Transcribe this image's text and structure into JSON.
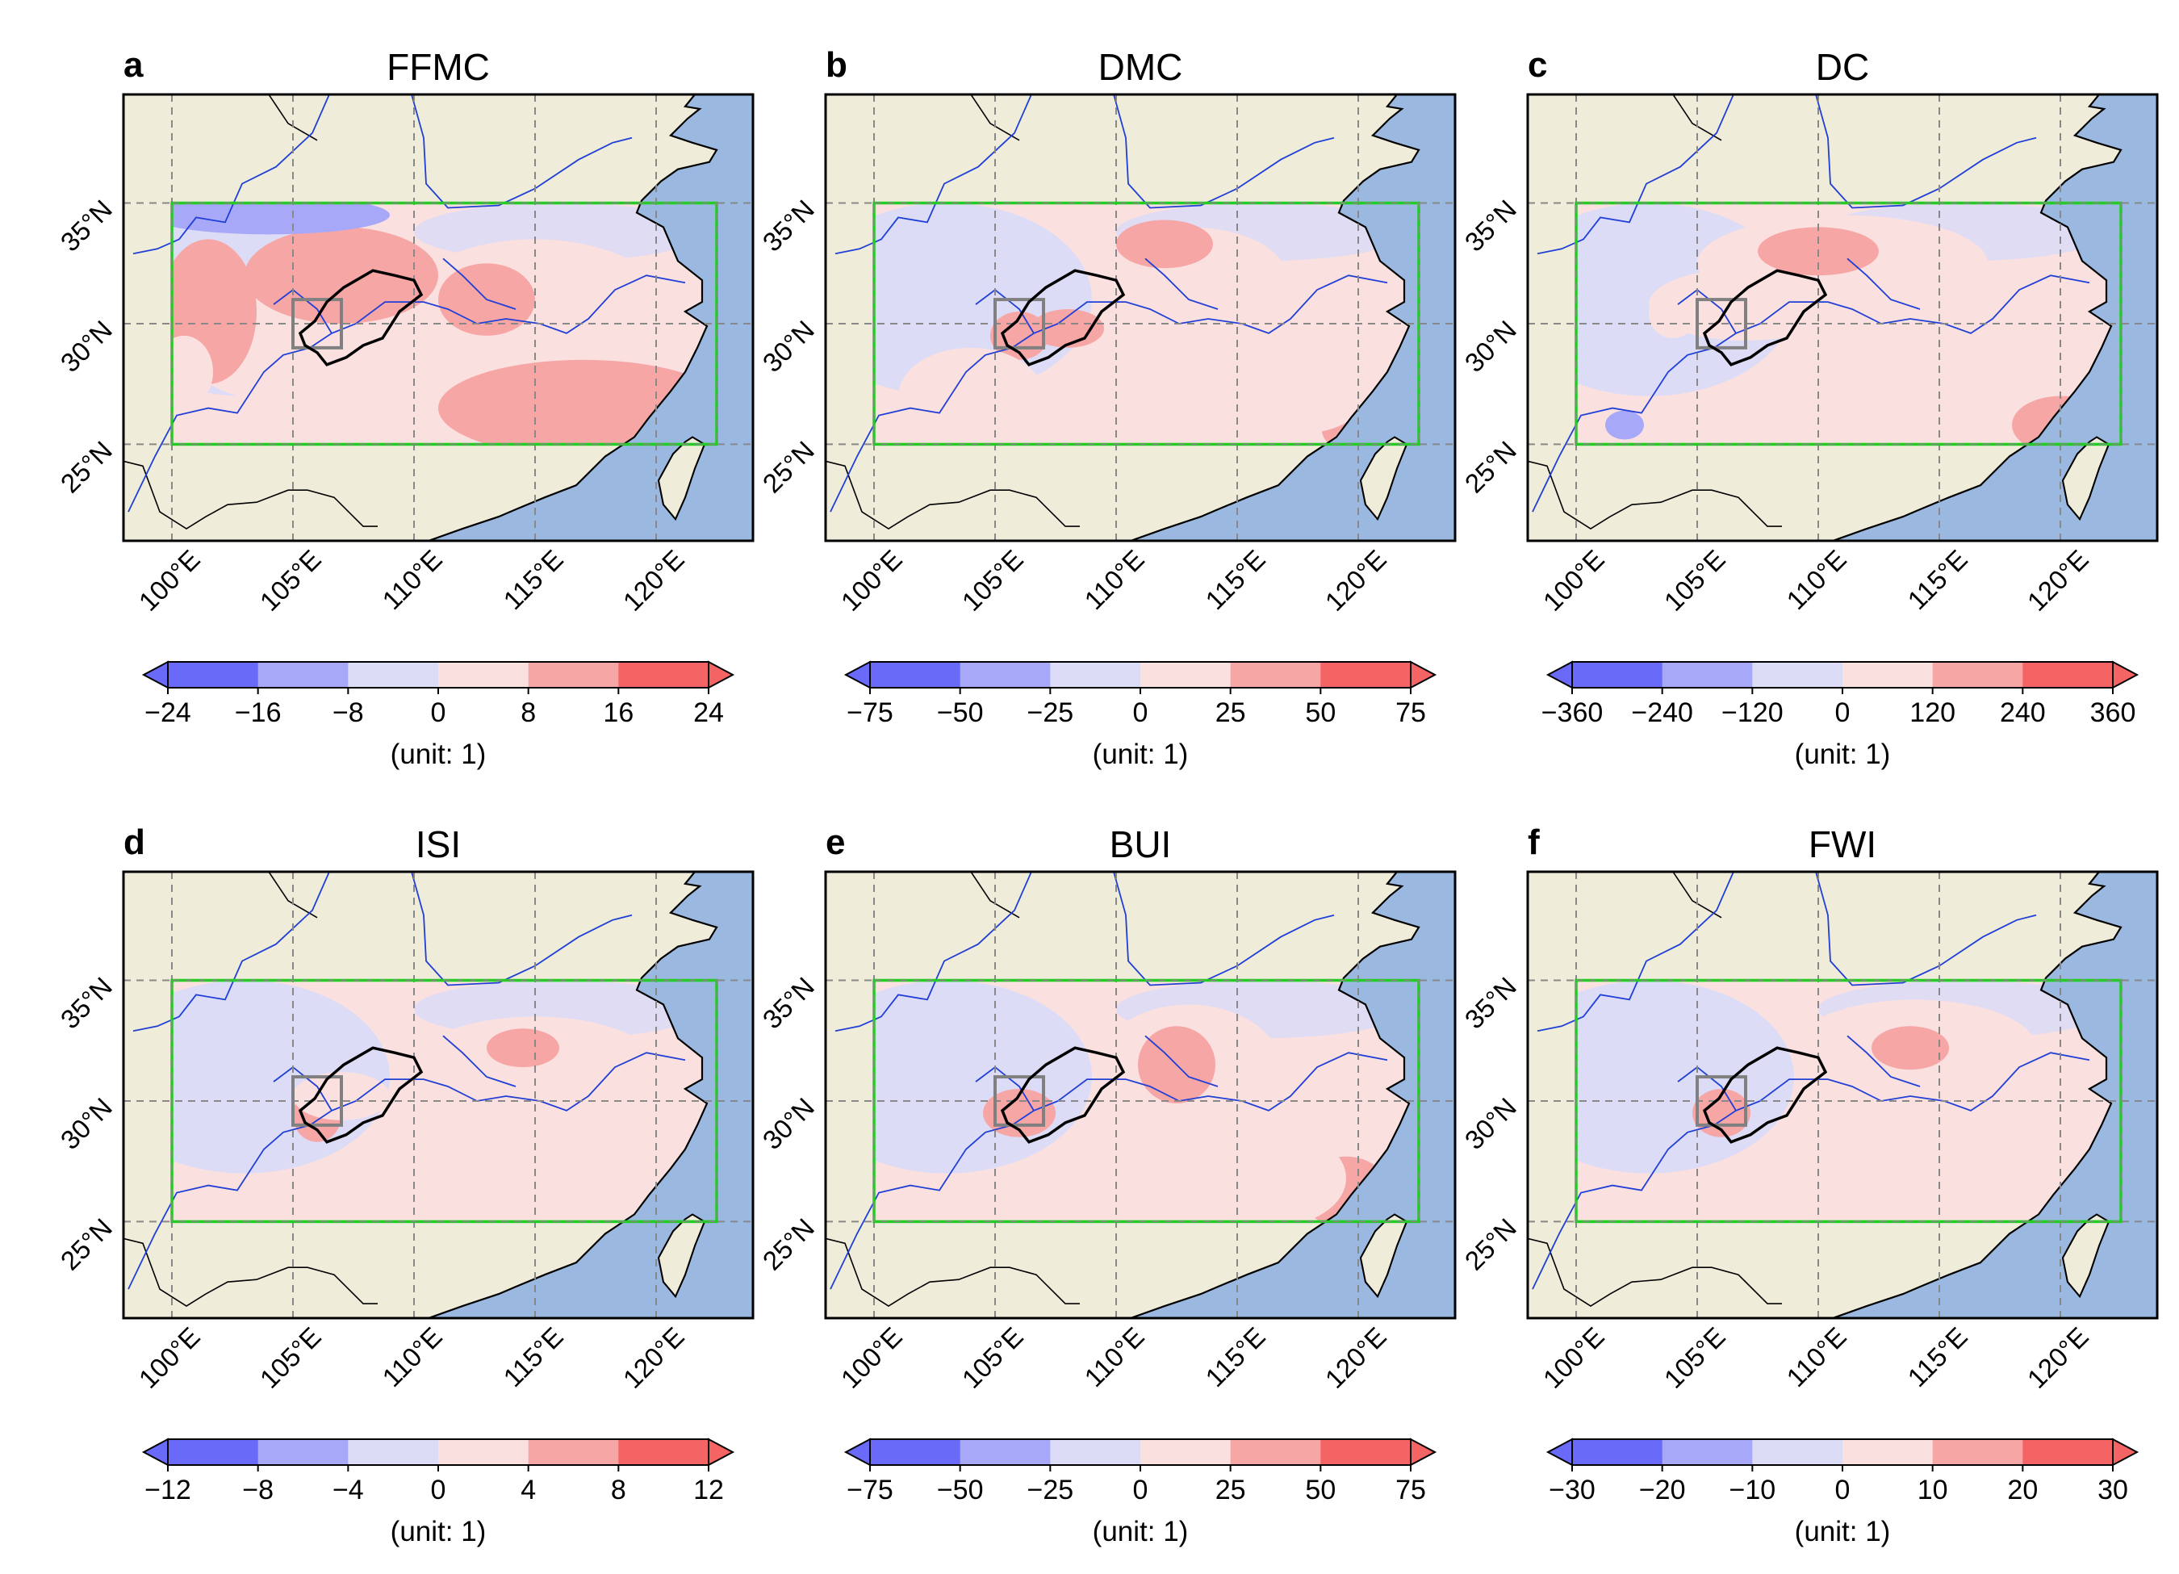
{
  "figure": {
    "unit_label": "(unit: 1)",
    "lon_labels": [
      "100°E",
      "105°E",
      "110°E",
      "115°E",
      "120°E"
    ],
    "lat_labels": [
      "35°N",
      "30°N",
      "25°N"
    ],
    "lon_ticks": [
      100,
      105,
      110,
      115,
      120
    ],
    "lat_ticks": [
      35,
      30,
      25
    ],
    "map_extent": {
      "lon": [
        98,
        124
      ],
      "lat": [
        21,
        39.5
      ]
    },
    "study_box": {
      "lon": [
        100,
        122.5
      ],
      "lat": [
        25,
        35
      ]
    },
    "colors": {
      "ocean": "#9bb9e0",
      "land": "#efecda",
      "study_box": "#22cc22",
      "river": "#1f3fd6",
      "grid": "#888888",
      "scale": [
        "#6a6af8",
        "#a8a8f8",
        "#dcdcf6",
        "#fbe0e0",
        "#f7a6a6",
        "#f46464"
      ]
    },
    "panels": [
      {
        "letter": "a",
        "title": "FFMC",
        "ticks": [
          "−24",
          "−16",
          "−8",
          "0",
          "8",
          "16",
          "24"
        ]
      },
      {
        "letter": "b",
        "title": "DMC",
        "ticks": [
          "−75",
          "−50",
          "−25",
          "0",
          "25",
          "50",
          "75"
        ]
      },
      {
        "letter": "c",
        "title": "DC",
        "ticks": [
          "−360",
          "−240",
          "−120",
          "0",
          "120",
          "240",
          "360"
        ]
      },
      {
        "letter": "d",
        "title": "ISI",
        "ticks": [
          "−12",
          "−8",
          "−4",
          "0",
          "4",
          "8",
          "12"
        ]
      },
      {
        "letter": "e",
        "title": "BUI",
        "ticks": [
          "−75",
          "−50",
          "−25",
          "0",
          "25",
          "50",
          "75"
        ]
      },
      {
        "letter": "f",
        "title": "FWI",
        "ticks": [
          "−30",
          "−20",
          "−10",
          "0",
          "10",
          "20",
          "30"
        ]
      }
    ]
  }
}
